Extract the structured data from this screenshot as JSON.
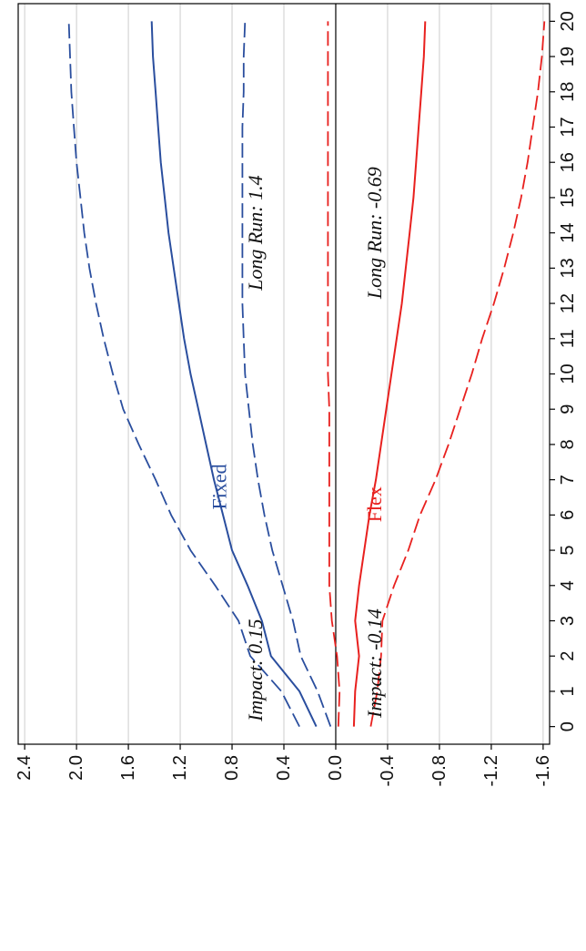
{
  "chart_data": {
    "type": "line",
    "orientation": "rotated-90-clockwise",
    "title": "",
    "xlabel": "",
    "ylabel": "",
    "x": [
      0,
      1,
      2,
      3,
      4,
      5,
      6,
      7,
      8,
      9,
      10,
      11,
      12,
      13,
      14,
      15,
      16,
      17,
      18,
      19,
      20
    ],
    "xlim": [
      -0.5,
      20.5
    ],
    "ylim": [
      -1.65,
      2.45
    ],
    "yticks": [
      -1.6,
      -1.2,
      -0.8,
      -0.4,
      0.0,
      0.4,
      0.8,
      1.2,
      1.6,
      2.0,
      2.4
    ],
    "ytick_labels": [
      "-1.6",
      "-1.2",
      "-0.8",
      "-0.4",
      "0.0",
      "0.4",
      "0.8",
      "1.2",
      "1.6",
      "2.0",
      "2.4"
    ],
    "grid": true,
    "zero_line": true,
    "colors": {
      "fixed": "#2a4e9e",
      "flex": "#e8201e",
      "grid": "#cccccc",
      "axis": "#000000"
    },
    "series": [
      {
        "id": "fixed_upper",
        "group": "fixed",
        "style": "dashed",
        "values": [
          0.28,
          0.42,
          0.66,
          0.75,
          0.93,
          1.12,
          1.27,
          1.39,
          1.52,
          1.64,
          1.72,
          1.79,
          1.85,
          1.9,
          1.94,
          1.97,
          2.0,
          2.02,
          2.04,
          2.05,
          2.06
        ]
      },
      {
        "id": "fixed_median",
        "group": "fixed",
        "style": "solid",
        "values": [
          0.15,
          0.28,
          0.5,
          0.57,
          0.68,
          0.8,
          0.87,
          0.94,
          1.0,
          1.06,
          1.12,
          1.17,
          1.21,
          1.25,
          1.29,
          1.32,
          1.35,
          1.37,
          1.39,
          1.41,
          1.42
        ]
      },
      {
        "id": "fixed_lower",
        "group": "fixed",
        "style": "dashed",
        "values": [
          0.04,
          0.14,
          0.27,
          0.33,
          0.41,
          0.49,
          0.55,
          0.6,
          0.64,
          0.67,
          0.7,
          0.71,
          0.72,
          0.72,
          0.72,
          0.72,
          0.72,
          0.72,
          0.71,
          0.71,
          0.7
        ]
      },
      {
        "id": "flex_upper",
        "group": "flex",
        "style": "dashed",
        "values": [
          -0.02,
          -0.03,
          -0.01,
          0.03,
          0.05,
          0.05,
          0.05,
          0.05,
          0.05,
          0.05,
          0.06,
          0.06,
          0.06,
          0.06,
          0.06,
          0.06,
          0.06,
          0.06,
          0.06,
          0.06,
          0.06
        ]
      },
      {
        "id": "flex_median",
        "group": "flex",
        "style": "solid",
        "values": [
          -0.14,
          -0.15,
          -0.18,
          -0.15,
          -0.18,
          -0.22,
          -0.26,
          -0.31,
          -0.35,
          -0.39,
          -0.43,
          -0.47,
          -0.51,
          -0.54,
          -0.57,
          -0.6,
          -0.62,
          -0.64,
          -0.66,
          -0.68,
          -0.69
        ]
      },
      {
        "id": "flex_lower",
        "group": "flex",
        "style": "dashed",
        "values": [
          -0.27,
          -0.32,
          -0.35,
          -0.36,
          -0.45,
          -0.56,
          -0.65,
          -0.77,
          -0.87,
          -0.96,
          -1.05,
          -1.13,
          -1.22,
          -1.3,
          -1.37,
          -1.43,
          -1.48,
          -1.52,
          -1.56,
          -1.59,
          -1.61
        ]
      }
    ],
    "annotations": [
      {
        "id": "impact_fixed",
        "text": "Impact: 0.15",
        "x": 1.6,
        "y": 0.62,
        "style": "italic",
        "color": "#111111"
      },
      {
        "id": "longrun_fixed",
        "text": "Long Run: 1.4",
        "x": 14.0,
        "y": 0.62,
        "style": "italic",
        "color": "#111111"
      },
      {
        "id": "fixed_label",
        "text": "Fixed",
        "x": 6.8,
        "y": 0.9,
        "style": "normal",
        "color": "#2a4e9e"
      },
      {
        "id": "impact_flex",
        "text": "Impact: -0.14",
        "x": 1.8,
        "y": -0.3,
        "style": "italic",
        "color": "#111111"
      },
      {
        "id": "longrun_flex",
        "text": "Long Run: -0.69",
        "x": 14.0,
        "y": -0.3,
        "style": "italic",
        "color": "#111111"
      },
      {
        "id": "flex_label",
        "text": "Flex",
        "x": 6.3,
        "y": -0.3,
        "style": "normal",
        "color": "#e8201e"
      }
    ]
  }
}
